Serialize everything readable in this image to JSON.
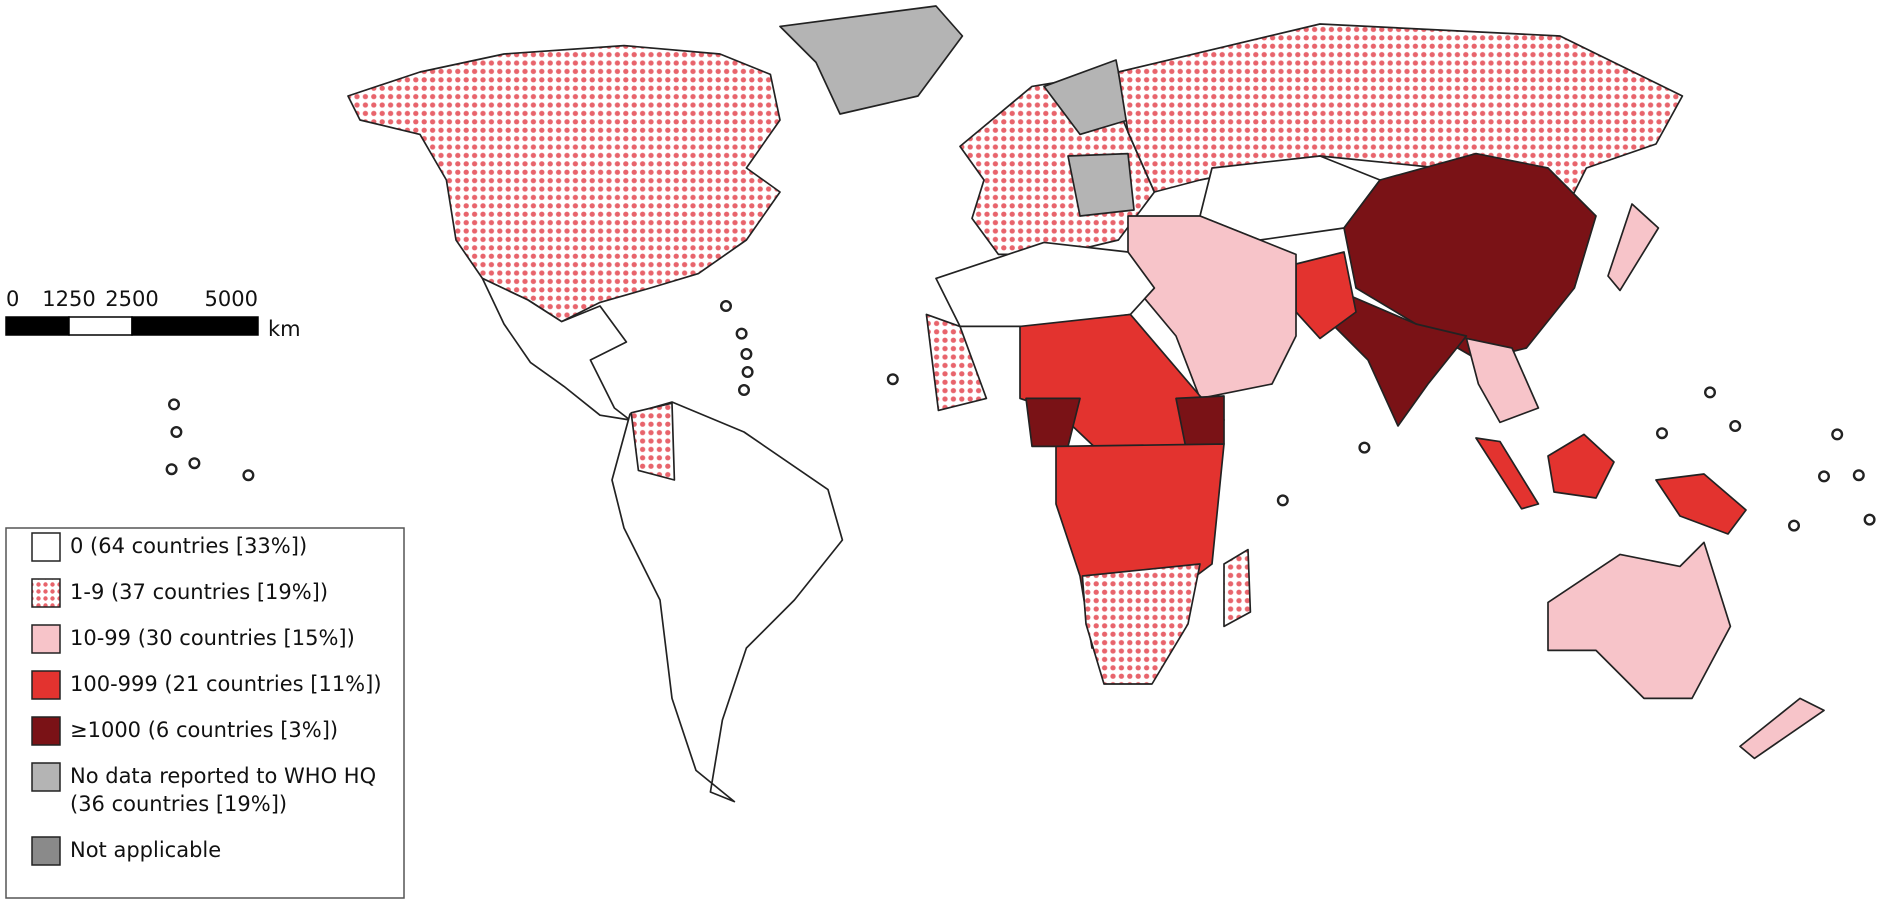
{
  "scale_bar": {
    "ticks": [
      0,
      1250,
      2500,
      5000
    ],
    "unit": "km"
  },
  "legend": {
    "entries": [
      {
        "lines": [
          "0 (64 countries [33%])"
        ],
        "color": "#ffffff"
      },
      {
        "lines": [
          "1-9 (37 countries [19%])"
        ],
        "color": "#e8646c",
        "pattern": "dots"
      },
      {
        "lines": [
          "10-99 (30 countries [15%])"
        ],
        "color": "#f7c4c9"
      },
      {
        "lines": [
          "100-999 (21 countries [11%])"
        ],
        "color": "#e3332f"
      },
      {
        "lines": [
          "≥1000 (6 countries [3%])"
        ],
        "color": "#7a1216"
      },
      {
        "lines": [
          "No data reported to WHO HQ",
          "(36 countries [19%])"
        ],
        "color": "#b4b4b4"
      },
      {
        "lines": [
          "Not applicable"
        ],
        "color": "#8a8a8a"
      }
    ]
  }
}
